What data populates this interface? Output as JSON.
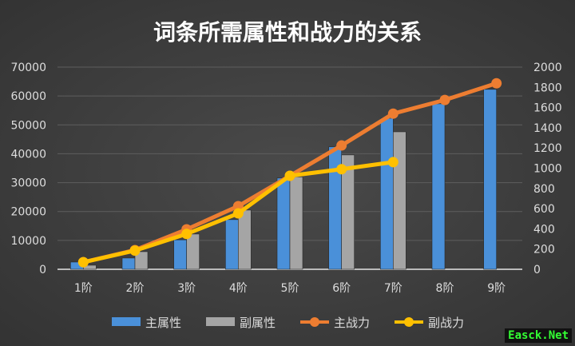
{
  "chart_data": {
    "type": "bar+line",
    "title": "词条所需属性和战力的关系",
    "categories": [
      "1阶",
      "2阶",
      "3阶",
      "4阶",
      "5阶",
      "6阶",
      "7阶",
      "8阶",
      "9阶"
    ],
    "y_left": {
      "min": 0,
      "max": 70000,
      "ticks": [
        0,
        10000,
        20000,
        30000,
        40000,
        50000,
        60000,
        70000
      ]
    },
    "y_right": {
      "min": 0,
      "max": 2000,
      "ticks": [
        0,
        200,
        400,
        600,
        800,
        1000,
        1200,
        1400,
        1600,
        1800,
        2000
      ]
    },
    "grid": true,
    "legend_position": "bottom",
    "series": [
      {
        "name": "主属性",
        "type": "bar",
        "axis": "left",
        "color": "#4a90d9",
        "values": [
          2500,
          3900,
          10200,
          17200,
          31600,
          42400,
          52300,
          57300,
          62300
        ]
      },
      {
        "name": "副属性",
        "type": "bar",
        "axis": "left",
        "color": "#a5a5a5",
        "values": [
          1400,
          6100,
          12200,
          20500,
          32000,
          39600,
          47600,
          null,
          null
        ]
      },
      {
        "name": "主战力",
        "type": "line",
        "axis": "right",
        "color": "#ed7d31",
        "values": [
          70,
          190,
          395,
          625,
          925,
          1225,
          1540,
          1675,
          1840
        ]
      },
      {
        "name": "副战力",
        "type": "line",
        "axis": "right",
        "color": "#ffc000",
        "values": [
          70,
          185,
          350,
          553,
          925,
          990,
          1060,
          null,
          null
        ]
      }
    ]
  },
  "watermark": "Easck.Net"
}
